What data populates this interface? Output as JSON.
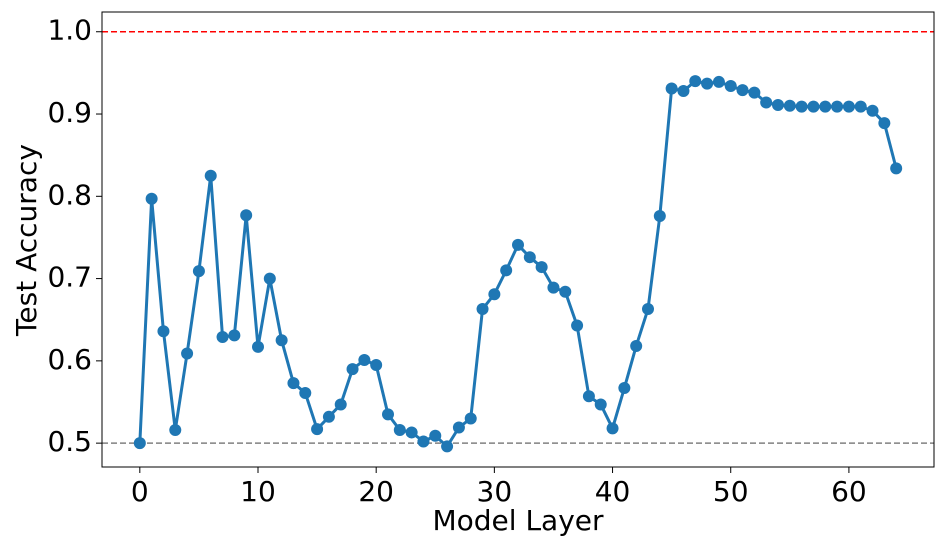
{
  "chart_data": {
    "type": "line",
    "x_label": "Model Layer",
    "y_label": "Test Accuracy",
    "x": [
      0,
      1,
      2,
      3,
      4,
      5,
      6,
      7,
      8,
      9,
      10,
      11,
      12,
      13,
      14,
      15,
      16,
      17,
      18,
      19,
      20,
      21,
      22,
      23,
      24,
      25,
      26,
      27,
      28,
      29,
      30,
      31,
      32,
      33,
      34,
      35,
      36,
      37,
      38,
      39,
      40,
      41,
      42,
      43,
      44,
      45,
      46,
      47,
      48,
      49,
      50,
      51,
      52,
      53,
      54,
      55,
      56,
      57,
      58,
      59,
      60,
      61,
      62,
      63,
      64
    ],
    "series": [
      {
        "color": "#1f77b4",
        "values": [
          0.5,
          0.797,
          0.636,
          0.516,
          0.609,
          0.709,
          0.825,
          0.629,
          0.631,
          0.777,
          0.617,
          0.7,
          0.625,
          0.573,
          0.561,
          0.517,
          0.532,
          0.547,
          0.59,
          0.601,
          0.595,
          0.535,
          0.516,
          0.513,
          0.502,
          0.509,
          0.496,
          0.519,
          0.53,
          0.663,
          0.681,
          0.71,
          0.741,
          0.726,
          0.714,
          0.689,
          0.684,
          0.643,
          0.557,
          0.547,
          0.518,
          0.567,
          0.618,
          0.663,
          0.776,
          0.931,
          0.928,
          0.94,
          0.937,
          0.939,
          0.934,
          0.929,
          0.926,
          0.914,
          0.911,
          0.91,
          0.909,
          0.909,
          0.909,
          0.909,
          0.909,
          0.909,
          0.904,
          0.889,
          0.834
        ]
      }
    ],
    "hlines": [
      {
        "value": 1,
        "color": "#ff0000"
      },
      {
        "value": 0.5,
        "color": "#808080"
      }
    ],
    "xlim": [
      -3.2,
      67.2
    ],
    "ylim": [
      0.471,
      1.024
    ],
    "xticks": [
      0,
      10,
      20,
      30,
      40,
      50,
      60
    ],
    "yticks": [
      0.5,
      0.6,
      0.7,
      0.8,
      0.9,
      {
        "value": 1,
        "label": "1.0"
      }
    ],
    "grid": false
  }
}
